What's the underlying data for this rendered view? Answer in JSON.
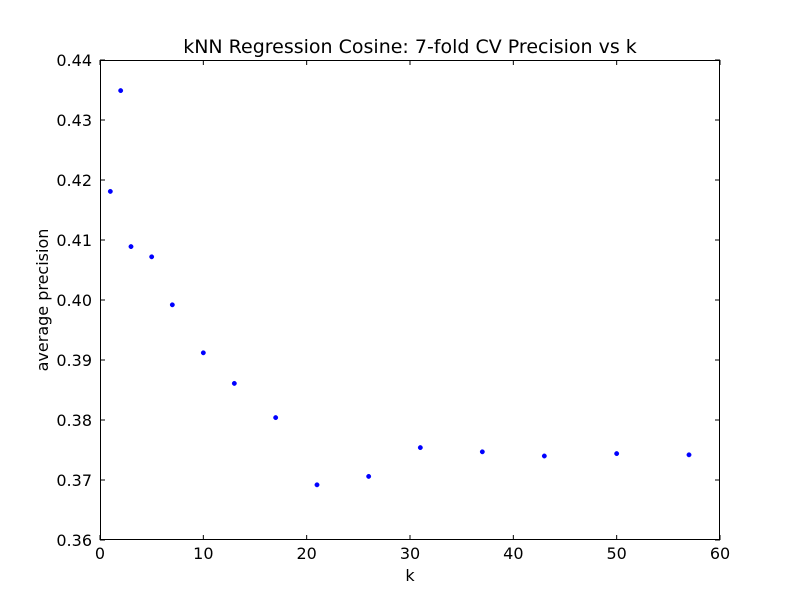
{
  "chart_data": {
    "type": "scatter",
    "title": "kNN Regression Cosine: 7-fold CV Precision vs k",
    "xlabel": "k",
    "ylabel": "average precision",
    "xlim": [
      0,
      60
    ],
    "ylim": [
      0.36,
      0.44
    ],
    "xticks": [
      "0",
      "10",
      "20",
      "30",
      "40",
      "50",
      "60"
    ],
    "yticks": [
      "0.36",
      "0.37",
      "0.38",
      "0.39",
      "0.40",
      "0.41",
      "0.42",
      "0.43",
      "0.44"
    ],
    "grid": false,
    "marker_color": "#0000ff",
    "series": [
      {
        "points": [
          {
            "x": 1,
            "y": 0.4181
          },
          {
            "x": 2,
            "y": 0.4349
          },
          {
            "x": 3,
            "y": 0.4089
          },
          {
            "x": 5,
            "y": 0.4072
          },
          {
            "x": 7,
            "y": 0.3992
          },
          {
            "x": 10,
            "y": 0.3912
          },
          {
            "x": 13,
            "y": 0.3861
          },
          {
            "x": 17,
            "y": 0.3804
          },
          {
            "x": 21,
            "y": 0.3692
          },
          {
            "x": 26,
            "y": 0.3706
          },
          {
            "x": 31,
            "y": 0.3754
          },
          {
            "x": 37,
            "y": 0.3747
          },
          {
            "x": 43,
            "y": 0.374
          },
          {
            "x": 50,
            "y": 0.3744
          },
          {
            "x": 57,
            "y": 0.3742
          }
        ]
      }
    ]
  }
}
